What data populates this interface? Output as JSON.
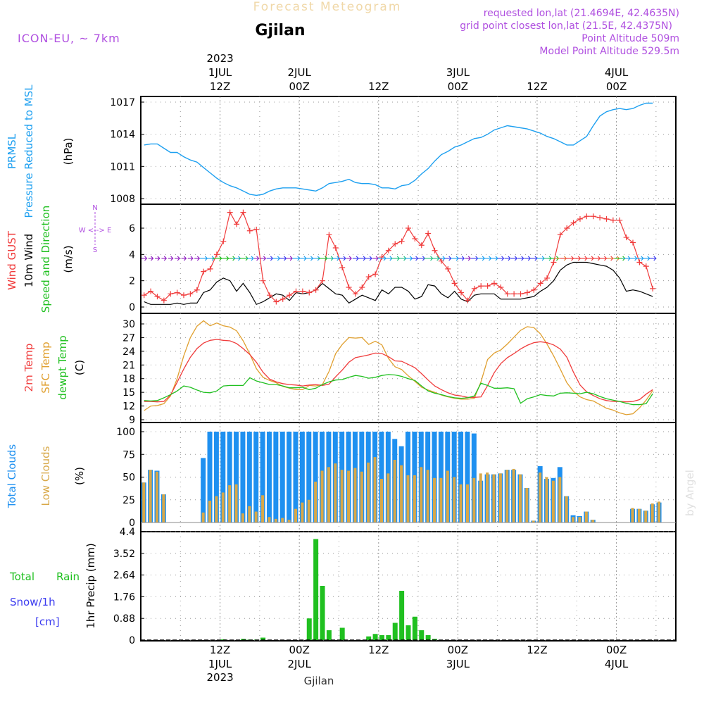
{
  "header": {
    "title_faded": "Forecast Meteogram",
    "location": "Gjilan",
    "model": "ICON-EU, ~ 7km",
    "requested": "requested lon,lat (21.4694E, 42.4635N)",
    "gridpoint": "grid point closest lon,lat (21.5E, 42.4375N)",
    "point_alt": "Point Altitude 509m",
    "model_alt": "Model Point Altitude 529.5m",
    "bottom_label": "Gjilan",
    "watermark": "by Angel"
  },
  "time_axis": {
    "top": [
      {
        "h": 12,
        "l1": "2023",
        "l2": "1JUL",
        "l3": "12Z"
      },
      {
        "h": 24,
        "l1": "",
        "l2": "2JUL",
        "l3": "00Z"
      },
      {
        "h": 36,
        "l1": "",
        "l2": "",
        "l3": "12Z"
      },
      {
        "h": 48,
        "l1": "",
        "l2": "3JUL",
        "l3": "00Z"
      },
      {
        "h": 60,
        "l1": "",
        "l2": "",
        "l3": "12Z"
      },
      {
        "h": 72,
        "l1": "",
        "l2": "4JUL",
        "l3": "00Z"
      }
    ],
    "bottom": [
      {
        "h": 12,
        "l1": "12Z",
        "l2": "1JUL",
        "l3": "2023"
      },
      {
        "h": 24,
        "l1": "00Z",
        "l2": "2JUL",
        "l3": ""
      },
      {
        "h": 36,
        "l1": "12Z",
        "l2": "",
        "l3": ""
      },
      {
        "h": 48,
        "l1": "00Z",
        "l2": "3JUL",
        "l3": ""
      },
      {
        "h": 60,
        "l1": "12Z",
        "l2": "",
        "l3": ""
      },
      {
        "h": 72,
        "l1": "00Z",
        "l2": "4JUL",
        "l3": ""
      }
    ]
  },
  "panels": {
    "pressure": {
      "label1": "PRMSL",
      "label2": "Pressure Reduced to MSL",
      "unit": "(hPa)",
      "ticks": [
        "1017",
        "1014",
        "1011",
        "1008"
      ]
    },
    "wind": {
      "label1": "Wind GUST",
      "label2": "10m Wind",
      "label3": "Speed and Direction",
      "unit": "(m/s)",
      "ticks": [
        "6",
        "4",
        "2",
        "0"
      ],
      "compass": "W <--> E"
    },
    "temp": {
      "label1": "2m Temp",
      "label2": "SFC Temp",
      "label3": "dewpt Temp",
      "unit": "(C)",
      "ticks": [
        "30",
        "27",
        "24",
        "21",
        "18",
        "15",
        "12",
        "9"
      ]
    },
    "clouds": {
      "label1": "Total Clouds",
      "label2": "Low Clouds",
      "unit": "(%)",
      "ticks": [
        "100",
        "75",
        "50",
        "25",
        "0"
      ]
    },
    "precip": {
      "label1": "Total",
      "label1b": "Rain",
      "label2": "Snow/1h",
      "label3": "[cm]",
      "unit": "1hr Precip (mm)",
      "ticks": [
        "4.4",
        "3.52",
        "2.64",
        "1.76",
        "0.88",
        "0"
      ]
    }
  },
  "colors": {
    "pressure": "#1ea0f0",
    "gust": "#f03c3c",
    "wind": "#000000",
    "temp2m": "#f03c3c",
    "sfc": "#e0a030",
    "dewpt": "#20c020",
    "total_clouds": "#1e90f0",
    "low_clouds": "#d8a848",
    "rain": "#20c020",
    "snow": "#3c3cf0",
    "header_purple": "#b050e0",
    "grid": "#999999"
  },
  "chart_data": [
    {
      "type": "line",
      "name": "pressure",
      "x_start_hour": 3,
      "x_step_hours": 1,
      "ylim": [
        1008,
        1017
      ],
      "series": [
        {
          "name": "PRMSL",
          "values": [
            1013,
            1013.1,
            1013.1,
            1012.7,
            1012.3,
            1012.3,
            1011.9,
            1011.6,
            1011.4,
            1010.9,
            1010.4,
            1009.9,
            1009.5,
            1009.2,
            1009,
            1008.7,
            1008.4,
            1008.3,
            1008.4,
            1008.7,
            1008.9,
            1009,
            1009,
            1009,
            1008.9,
            1008.8,
            1008.7,
            1009,
            1009.4,
            1009.5,
            1009.6,
            1009.8,
            1009.5,
            1009.4,
            1009.4,
            1009.3,
            1009,
            1009,
            1008.9,
            1009.2,
            1009.3,
            1009.7,
            1010.3,
            1010.8,
            1011.5,
            1012.1,
            1012.4,
            1012.8,
            1013,
            1013.3,
            1013.6,
            1013.7,
            1014,
            1014.4,
            1014.6,
            1014.8,
            1014.7,
            1014.6,
            1014.5,
            1014.3,
            1014.1,
            1013.8,
            1013.6,
            1013.3,
            1013,
            1013,
            1013.4,
            1013.8,
            1014.8,
            1015.7,
            1016.1,
            1016.3,
            1016.4,
            1016.3,
            1016.4,
            1016.7,
            1016.9,
            1016.9
          ]
        }
      ]
    },
    {
      "type": "line",
      "name": "wind",
      "x_start_hour": 3,
      "x_step_hours": 1,
      "ylim": [
        0,
        7.5
      ],
      "series": [
        {
          "name": "Wind GUST",
          "values": [
            0.9,
            1.2,
            0.8,
            0.5,
            1.0,
            1.1,
            0.9,
            1.0,
            1.3,
            2.7,
            2.9,
            4.0,
            5.0,
            7.2,
            6.3,
            7.2,
            5.8,
            5.9,
            2.0,
            0.9,
            0.4,
            0.6,
            0.9,
            1.2,
            1.2,
            1.1,
            1.3,
            2.0,
            5.5,
            4.5,
            3.0,
            1.5,
            1.0,
            1.5,
            2.3,
            2.5,
            3.8,
            4.3,
            4.8,
            5.0,
            6.0,
            5.2,
            4.7,
            5.6,
            4.3,
            3.5,
            2.9,
            1.8,
            1.1,
            0.5,
            1.4,
            1.6,
            1.6,
            1.8,
            1.5,
            1.0,
            1.0,
            1.0,
            1.1,
            1.3,
            1.8,
            2.2,
            3.4,
            5.5,
            6.0,
            6.4,
            6.7,
            6.9,
            6.9,
            6.8,
            6.7,
            6.6,
            6.6,
            5.3,
            4.9,
            3.4,
            3.1,
            1.4
          ]
        },
        {
          "name": "10m Wind",
          "values": [
            0.4,
            0.2,
            0.2,
            0.2,
            0.2,
            0.3,
            0.2,
            0.3,
            0.3,
            1.1,
            1.3,
            1.9,
            2.2,
            2.0,
            1.2,
            1.8,
            1.1,
            0.2,
            0.4,
            0.7,
            1.0,
            0.9,
            0.5,
            1.1,
            1.0,
            1.1,
            1.3,
            1.8,
            1.4,
            1.0,
            0.9,
            0.3,
            0.6,
            0.9,
            0.7,
            0.5,
            1.3,
            1.0,
            1.5,
            1.5,
            1.2,
            0.6,
            0.8,
            1.7,
            1.6,
            1.0,
            0.7,
            1.2,
            0.6,
            0.4,
            0.9,
            1.0,
            1.0,
            1.0,
            0.6,
            0.6,
            0.6,
            0.6,
            0.7,
            0.8,
            1.2,
            1.5,
            2.0,
            2.8,
            3.2,
            3.4,
            3.4,
            3.4,
            3.3,
            3.2,
            3.1,
            2.8,
            2.2,
            1.2,
            1.3,
            1.2,
            1.0,
            0.8
          ]
        }
      ]
    },
    {
      "type": "line",
      "name": "temperature",
      "x_start_hour": 3,
      "x_step_hours": 1,
      "ylim": [
        9,
        31
      ],
      "series": [
        {
          "name": "2m Temp",
          "values": [
            13,
            13,
            12.9,
            13,
            14.4,
            17.2,
            20.1,
            22.7,
            24.6,
            25.8,
            26.4,
            26.6,
            26.4,
            26.3,
            25.7,
            24.6,
            23.3,
            21.6,
            19.4,
            17.9,
            17.3,
            16.9,
            16.7,
            16.6,
            16.4,
            16.6,
            16.7,
            16.5,
            16.8,
            18.4,
            19.9,
            21.6,
            22.6,
            22.9,
            23.2,
            23.6,
            23.5,
            22.8,
            21.9,
            21.8,
            21.1,
            20.4,
            19.1,
            17.7,
            16.4,
            15.6,
            14.9,
            14.4,
            14.2,
            13.9,
            13.9,
            14,
            16.5,
            19.3,
            21.3,
            22.6,
            23.5,
            24.5,
            25.3,
            25.9,
            26.1,
            25.9,
            25.4,
            24.5,
            22.7,
            19.4,
            16.6,
            15.1,
            14.3,
            13.6,
            13.2,
            13,
            13,
            12.9,
            13,
            13.4,
            14.6,
            15.6
          ]
        },
        {
          "name": "SFC Temp",
          "values": [
            11,
            12,
            12.1,
            12.5,
            14.2,
            18,
            23,
            27,
            29.5,
            30.7,
            29.6,
            30.2,
            29.6,
            29.3,
            28.5,
            26.3,
            23.4,
            20.2,
            18.3,
            17.6,
            17.1,
            16.3,
            15.9,
            15.6,
            15.6,
            16.5,
            16.4,
            16.7,
            19.6,
            23.5,
            25.5,
            27,
            26.9,
            27,
            25.5,
            26.2,
            25.4,
            22.4,
            20.6,
            20,
            18.6,
            17.4,
            16.1,
            15.5,
            15,
            14.4,
            14,
            13.7,
            13.5,
            13.5,
            13.7,
            17.3,
            22.2,
            23.6,
            24.3,
            25.6,
            27.1,
            28.6,
            29.4,
            29.2,
            27.8,
            25.6,
            23,
            20.1,
            17.1,
            15.2,
            14,
            13.4,
            13.1,
            12.3,
            11.5,
            11.1,
            10.5,
            10.1,
            10.3,
            11.6,
            13.3,
            15.4
          ]
        },
        {
          "name": "dewpt Temp",
          "values": [
            13.2,
            13.1,
            13.2,
            13.8,
            14.5,
            15.3,
            16.4,
            16.1,
            15.5,
            15,
            14.9,
            15.3,
            16.4,
            16.5,
            16.5,
            16.5,
            18.2,
            17.5,
            17.1,
            16.7,
            16.7,
            16.4,
            16,
            16,
            16.1,
            15.6,
            15.9,
            16.7,
            17.3,
            17.7,
            17.8,
            18.3,
            18.7,
            18.5,
            18.1,
            18.3,
            18.7,
            18.9,
            18.8,
            18.5,
            18,
            17.6,
            16.4,
            15.3,
            14.8,
            14.5,
            14.1,
            13.8,
            13.7,
            13.8,
            14.2,
            17,
            16.5,
            15.9,
            15.9,
            16,
            15.8,
            12.6,
            13.6,
            14,
            14.5,
            14.3,
            14.2,
            14.8,
            14.9,
            14.8,
            14.7,
            15,
            14.7,
            14.1,
            13.6,
            13.3,
            13,
            12.6,
            12.3,
            12.3,
            12.5,
            14.7
          ]
        }
      ]
    },
    {
      "type": "bar",
      "name": "clouds",
      "x_start_hour": 3,
      "x_step_hours": 1,
      "ylim": [
        0,
        100
      ],
      "series": [
        {
          "name": "Total Clouds",
          "values": [
            44,
            58,
            57,
            31,
            0,
            0,
            0,
            0,
            0,
            71,
            100,
            100,
            100,
            100,
            100,
            100,
            100,
            100,
            100,
            100,
            100,
            100,
            100,
            100,
            100,
            100,
            100,
            100,
            100,
            100,
            100,
            100,
            100,
            100,
            100,
            100,
            100,
            100,
            92,
            84,
            100,
            100,
            100,
            100,
            100,
            100,
            100,
            100,
            100,
            100,
            98,
            46,
            53,
            53,
            54,
            58,
            58,
            53,
            38,
            2,
            62,
            48,
            49,
            61,
            29,
            8,
            7,
            12,
            3,
            0,
            0,
            0,
            0,
            0,
            15,
            15,
            13,
            20,
            22,
            0,
            0
          ]
        },
        {
          "name": "Low Clouds",
          "values": [
            44,
            58,
            56,
            31,
            0,
            0,
            0,
            0,
            0,
            11,
            24,
            29,
            33,
            41,
            42,
            10,
            18,
            12,
            30,
            6,
            4,
            5,
            3,
            15,
            22,
            25,
            45,
            57,
            61,
            65,
            58,
            57,
            60,
            56,
            66,
            72,
            48,
            54,
            69,
            63,
            52,
            52,
            61,
            58,
            49,
            49,
            57,
            50,
            42,
            42,
            49,
            54,
            55,
            53,
            54,
            58,
            59,
            53,
            38,
            2,
            55,
            50,
            46,
            50,
            29,
            6,
            6,
            12,
            3,
            0,
            0,
            0,
            0,
            0,
            16,
            15,
            13,
            21,
            23,
            0,
            0
          ]
        }
      ]
    },
    {
      "type": "bar",
      "name": "precip",
      "x_start_hour": 3,
      "x_step_hours": 1,
      "ylim": [
        0,
        4.4
      ],
      "series": [
        {
          "name": "Total Rain",
          "values": [
            0,
            0,
            0,
            0,
            0,
            0,
            0,
            0,
            0,
            0,
            0,
            0,
            0.03,
            0,
            0,
            0.05,
            0.02,
            0.02,
            0.1,
            0,
            0,
            0,
            0,
            0,
            0,
            0.88,
            4.1,
            2.2,
            0.4,
            0,
            0.5,
            0,
            0,
            0,
            0.15,
            0.25,
            0.2,
            0.2,
            0.7,
            2.0,
            0.6,
            0.95,
            0.4,
            0.2,
            0.05,
            0,
            0,
            0,
            0,
            0,
            0,
            0,
            0,
            0,
            0,
            0,
            0,
            0,
            0,
            0,
            0,
            0,
            0,
            0,
            0,
            0,
            0,
            0,
            0,
            0,
            0,
            0,
            0,
            0,
            0,
            0,
            0,
            0
          ]
        },
        {
          "name": "Snow/1h",
          "values": []
        }
      ]
    }
  ]
}
